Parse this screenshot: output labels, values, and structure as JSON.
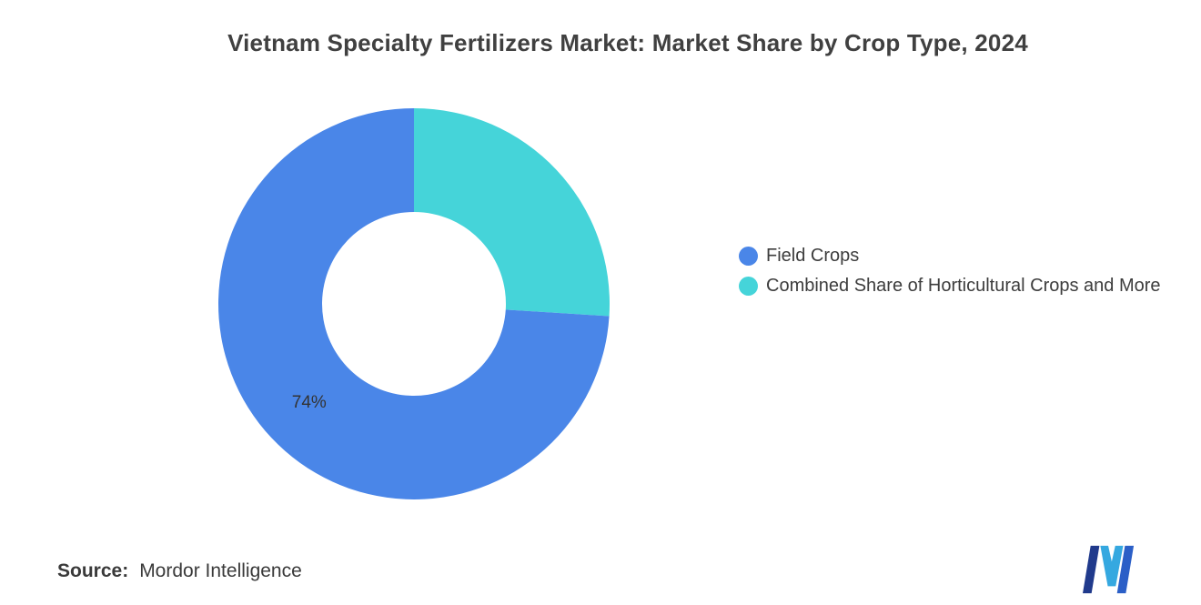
{
  "chart_data": {
    "type": "pie",
    "subtype": "donut",
    "title": "Vietnam Specialty Fertilizers Market: Market Share by Crop Type, 2024",
    "values_unit": "%",
    "total": 100,
    "inner_radius_ratio": 0.47,
    "start_angle_deg": 0,
    "direction": "clockwise",
    "legend_position": "right",
    "series": [
      {
        "name": "Field Crops",
        "value": 74,
        "color": "#4A86E8",
        "data_label": "74%"
      },
      {
        "name": "Combined Share of Horticultural Crops and More",
        "value": 26,
        "color": "#45D4D9",
        "data_label": ""
      }
    ]
  },
  "footer": {
    "source_label": "Source:",
    "source_value": "Mordor Intelligence"
  },
  "branding": {
    "logo_name": "mordor-intelligence-logo",
    "logo_colors": {
      "left": "#203A8C",
      "middle": "#35A8E0",
      "right": "#2B5FC7"
    }
  }
}
